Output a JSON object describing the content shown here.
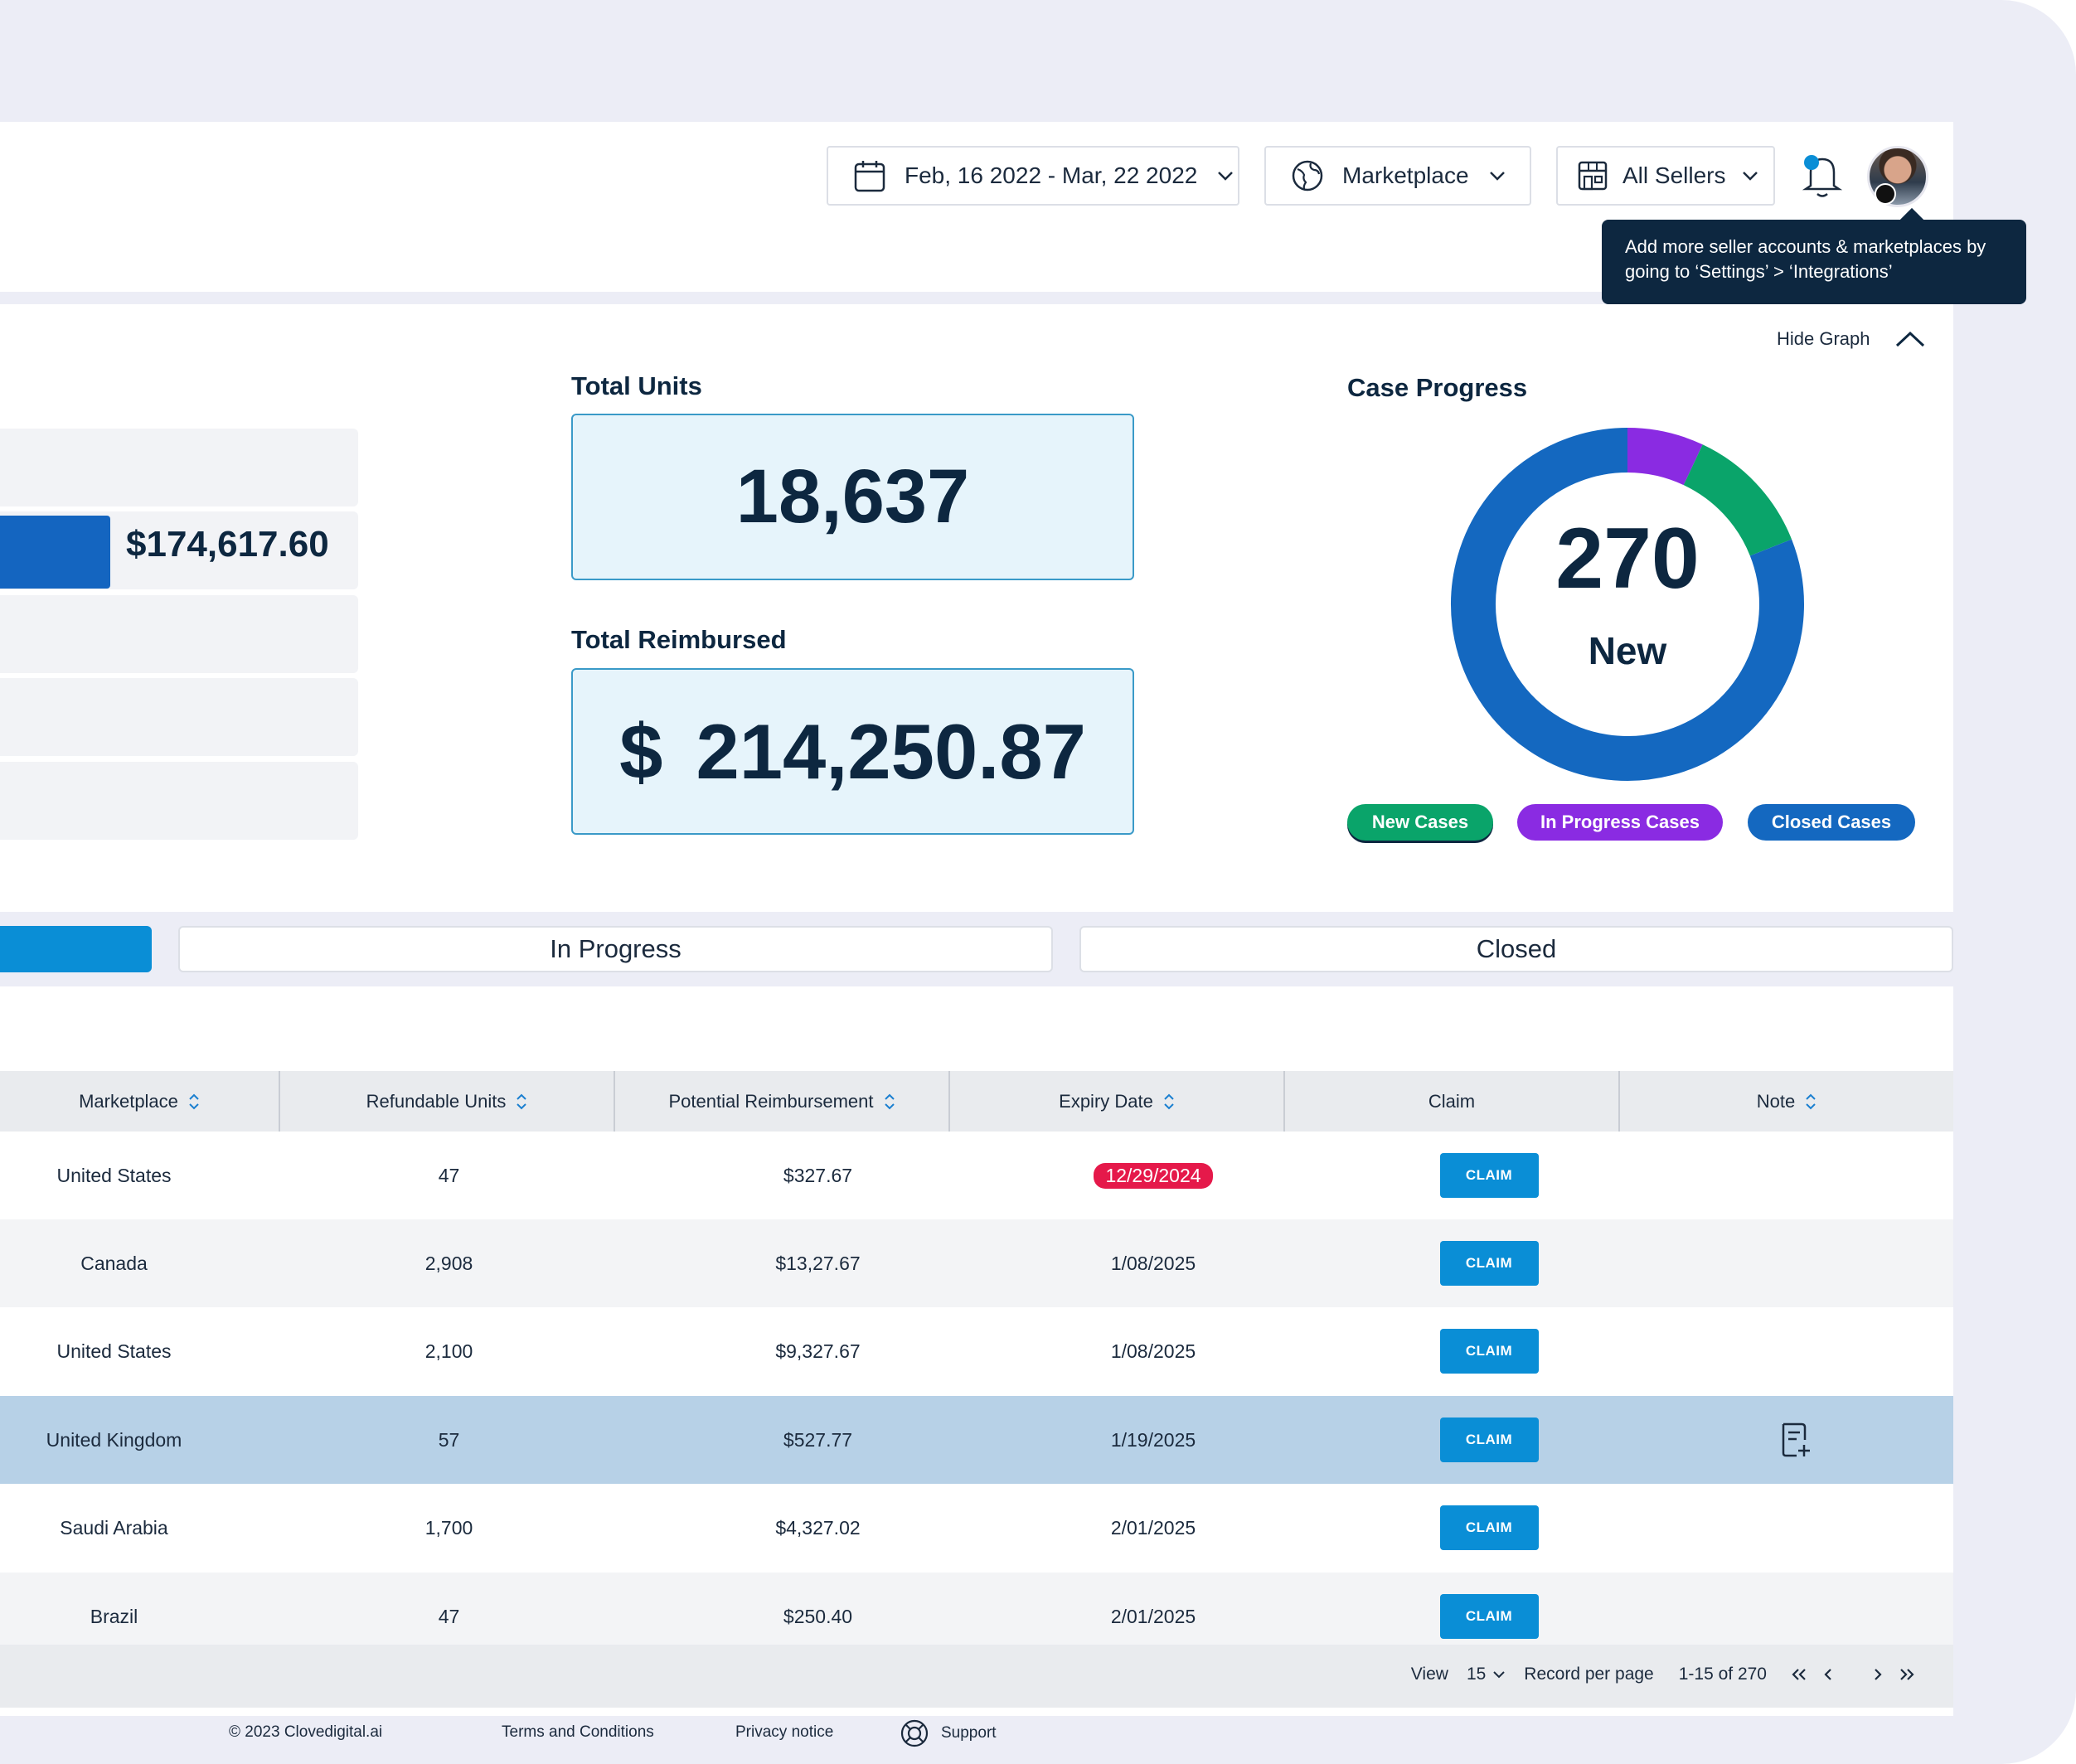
{
  "header": {
    "date_range": "Feb, 16 2022 - Mar, 22 2022",
    "marketplace": "Marketplace",
    "sellers": "All Sellers",
    "tooltip": "Add more seller accounts & marketplaces by going to ‘Settings’ > ‘Integrations’"
  },
  "stats": {
    "hide_graph": "Hide Graph",
    "bar_value": "$174,617.60",
    "total_units_label": "Total Units",
    "total_units_value": "18,637",
    "total_reimbursed_label": "Total Reimbursed",
    "total_reimbursed_value": "$ 214,250.87"
  },
  "case_progress": {
    "title": "Case Progress",
    "center_value": "270",
    "center_label": "New",
    "legend": [
      "New Cases",
      "In Progress Cases",
      "Closed Cases"
    ],
    "colors": {
      "new": "#0aa46a",
      "in_progress": "#8a2be2",
      "closed": "#1468c0"
    }
  },
  "chart_data": {
    "type": "pie",
    "categories": [
      "New Cases",
      "In Progress Cases",
      "Closed Cases"
    ],
    "values": [
      12,
      7,
      81
    ],
    "title": "Case Progress"
  },
  "tabs": [
    "In Progress",
    "Closed"
  ],
  "table": {
    "columns": [
      "Marketplace",
      "Refundable Units",
      "Potential Reimbursement",
      "Expiry Date",
      "Claim",
      "Note"
    ],
    "claim_label": "CLAIM",
    "rows": [
      {
        "marketplace": "United States",
        "units": "47",
        "reimbursement": "$327.67",
        "expiry": "12/29/2024"
      },
      {
        "marketplace": "Canada",
        "units": "2,908",
        "reimbursement": "$13,27.67",
        "expiry": "1/08/2025"
      },
      {
        "marketplace": "United States",
        "units": "2,100",
        "reimbursement": "$9,327.67",
        "expiry": "1/08/2025"
      },
      {
        "marketplace": "United Kingdom",
        "units": "57",
        "reimbursement": "$527.77",
        "expiry": "1/19/2025"
      },
      {
        "marketplace": "Saudi Arabia",
        "units": "1,700",
        "reimbursement": "$4,327.02",
        "expiry": "2/01/2025"
      },
      {
        "marketplace": "Brazil",
        "units": "47",
        "reimbursement": "$250.40",
        "expiry": "2/01/2025"
      }
    ]
  },
  "pager": {
    "view": "View",
    "per_page": "15",
    "record_label": "Record per page",
    "range": "1-15 of 270"
  },
  "footer": {
    "copyright": "© 2023 Clovedigital.ai",
    "terms": "Terms and Conditions",
    "privacy": "Privacy notice",
    "support": "Support"
  }
}
